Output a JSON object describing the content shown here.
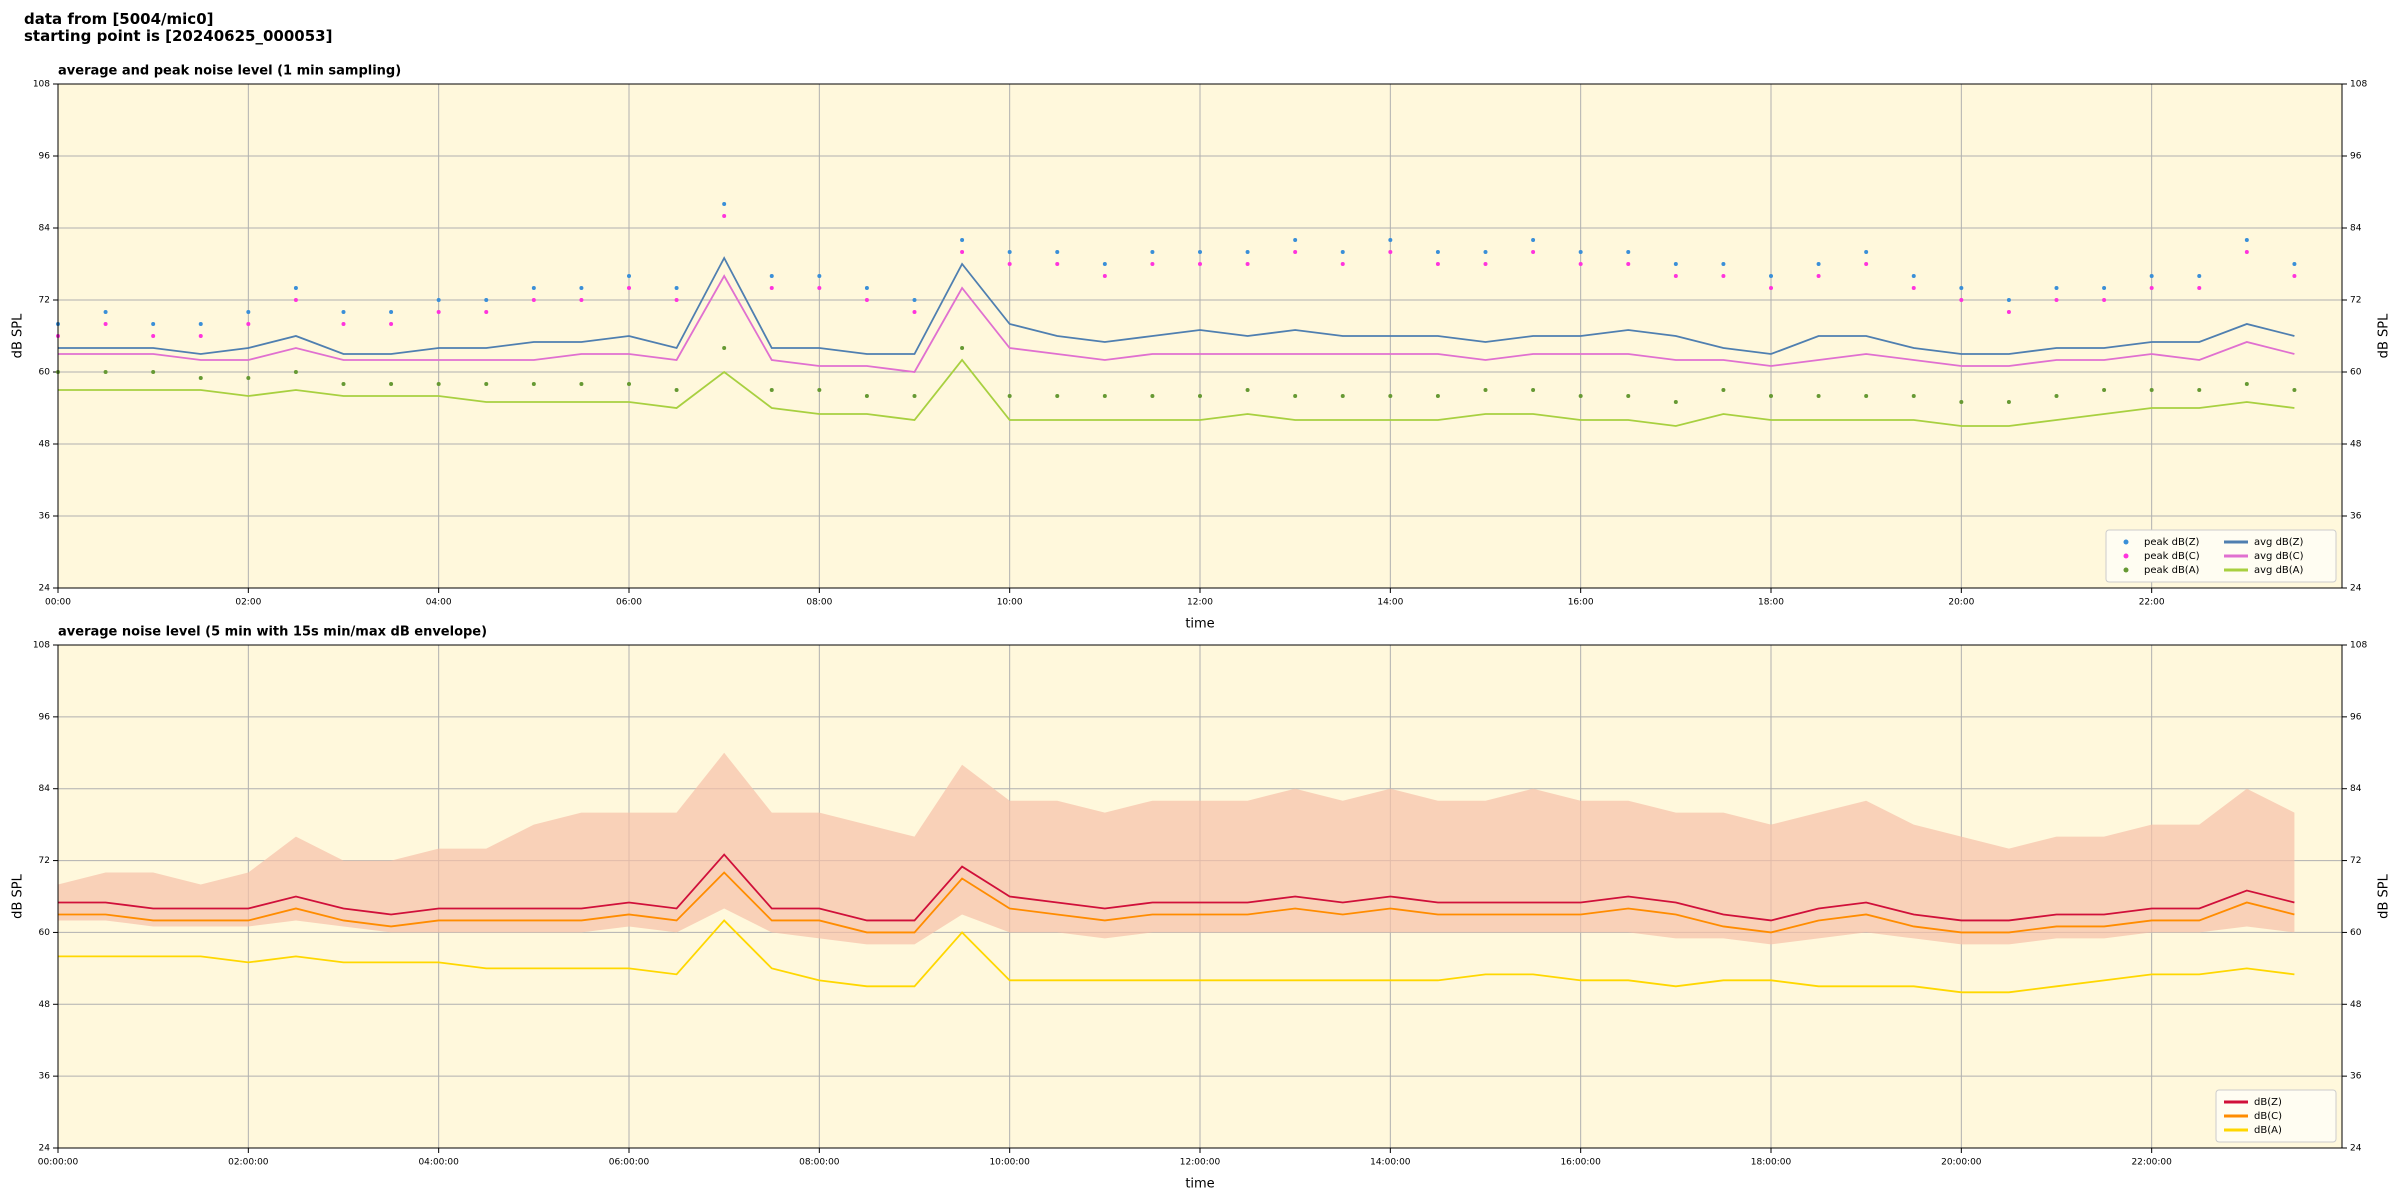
{
  "header": {
    "line1": "data from [5004/mic0]",
    "line2": "starting point is [20240625_000053]"
  },
  "chart_data": [
    {
      "type": "line",
      "title": "average and peak noise level (1 min sampling)",
      "xlabel": "time",
      "ylabel": "dB SPL",
      "x": [
        0,
        30,
        60,
        90,
        120,
        150,
        180,
        210,
        240,
        270,
        300,
        330,
        360,
        390,
        420,
        450,
        480,
        510,
        540,
        570,
        600,
        630,
        660,
        690,
        720,
        750,
        780,
        810,
        840,
        870,
        900,
        930,
        960,
        990,
        1020,
        1050,
        1080,
        1110,
        1140,
        1170,
        1200,
        1230,
        1260,
        1290,
        1320,
        1350,
        1380,
        1410
      ],
      "xlim": [
        0,
        1440
      ],
      "xticks": [
        {
          "value": 0,
          "label": "00:00"
        },
        {
          "value": 120,
          "label": "02:00"
        },
        {
          "value": 240,
          "label": "04:00"
        },
        {
          "value": 360,
          "label": "06:00"
        },
        {
          "value": 480,
          "label": "08:00"
        },
        {
          "value": 600,
          "label": "10:00"
        },
        {
          "value": 720,
          "label": "12:00"
        },
        {
          "value": 840,
          "label": "14:00"
        },
        {
          "value": 960,
          "label": "16:00"
        },
        {
          "value": 1080,
          "label": "18:00"
        },
        {
          "value": 1200,
          "label": "20:00"
        },
        {
          "value": 1320,
          "label": "22:00"
        }
      ],
      "ylim": [
        24,
        108
      ],
      "yticks": [
        24,
        36,
        48,
        60,
        72,
        84,
        96,
        108
      ],
      "grid": true,
      "legend": "lower right",
      "background": "#fff8dc",
      "series": [
        {
          "name": "peak dB(Z)",
          "style": "scatter",
          "color": "#3a8fd8",
          "values": [
            68,
            70,
            68,
            68,
            70,
            74,
            70,
            70,
            72,
            72,
            74,
            74,
            76,
            74,
            88,
            76,
            76,
            74,
            72,
            82,
            80,
            80,
            78,
            80,
            80,
            80,
            82,
            80,
            82,
            80,
            80,
            82,
            80,
            80,
            78,
            78,
            76,
            78,
            80,
            76,
            74,
            72,
            74,
            74,
            76,
            76,
            82,
            78
          ]
        },
        {
          "name": "peak dB(C)",
          "style": "scatter",
          "color": "#ff33dd",
          "values": [
            66,
            68,
            66,
            66,
            68,
            72,
            68,
            68,
            70,
            70,
            72,
            72,
            74,
            72,
            86,
            74,
            74,
            72,
            70,
            80,
            78,
            78,
            76,
            78,
            78,
            78,
            80,
            78,
            80,
            78,
            78,
            80,
            78,
            78,
            76,
            76,
            74,
            76,
            78,
            74,
            72,
            70,
            72,
            72,
            74,
            74,
            80,
            76
          ]
        },
        {
          "name": "peak dB(A)",
          "style": "scatter",
          "color": "#669933",
          "values": [
            60,
            60,
            60,
            59,
            59,
            60,
            58,
            58,
            58,
            58,
            58,
            58,
            58,
            57,
            64,
            57,
            57,
            56,
            56,
            64,
            56,
            56,
            56,
            56,
            56,
            57,
            56,
            56,
            56,
            56,
            57,
            57,
            56,
            56,
            55,
            57,
            56,
            56,
            56,
            56,
            55,
            55,
            56,
            57,
            57,
            57,
            58,
            57
          ]
        },
        {
          "name": "avg dB(Z)",
          "style": "line",
          "color": "#4f7fb0",
          "values": [
            64,
            64,
            64,
            63,
            64,
            66,
            63,
            63,
            64,
            64,
            65,
            65,
            66,
            64,
            79,
            64,
            64,
            63,
            63,
            78,
            68,
            66,
            65,
            66,
            67,
            66,
            67,
            66,
            66,
            66,
            65,
            66,
            66,
            67,
            66,
            64,
            63,
            66,
            66,
            64,
            63,
            63,
            64,
            64,
            65,
            65,
            68,
            66
          ]
        },
        {
          "name": "avg dB(C)",
          "style": "line",
          "color": "#e070d0",
          "values": [
            63,
            63,
            63,
            62,
            62,
            64,
            62,
            62,
            62,
            62,
            62,
            63,
            63,
            62,
            76,
            62,
            61,
            61,
            60,
            74,
            64,
            63,
            62,
            63,
            63,
            63,
            63,
            63,
            63,
            63,
            62,
            63,
            63,
            63,
            62,
            62,
            61,
            62,
            63,
            62,
            61,
            61,
            62,
            62,
            63,
            62,
            65,
            63
          ]
        },
        {
          "name": "avg dB(A)",
          "style": "line",
          "color": "#a8d040",
          "values": [
            57,
            57,
            57,
            57,
            56,
            57,
            56,
            56,
            56,
            55,
            55,
            55,
            55,
            54,
            60,
            54,
            53,
            53,
            52,
            62,
            52,
            52,
            52,
            52,
            52,
            53,
            52,
            52,
            52,
            52,
            53,
            53,
            52,
            52,
            51,
            53,
            52,
            52,
            52,
            52,
            51,
            51,
            52,
            53,
            54,
            54,
            55,
            54
          ]
        }
      ]
    },
    {
      "type": "line",
      "title": "average noise level (5 min with 15s min/max dB envelope)",
      "xlabel": "time",
      "ylabel": "dB SPL",
      "x": [
        0,
        30,
        60,
        90,
        120,
        150,
        180,
        210,
        240,
        270,
        300,
        330,
        360,
        390,
        420,
        450,
        480,
        510,
        540,
        570,
        600,
        630,
        660,
        690,
        720,
        750,
        780,
        810,
        840,
        870,
        900,
        930,
        960,
        990,
        1020,
        1050,
        1080,
        1110,
        1140,
        1170,
        1200,
        1230,
        1260,
        1290,
        1320,
        1350,
        1380,
        1410
      ],
      "xlim": [
        0,
        1440
      ],
      "xticks": [
        {
          "value": 0,
          "label": "00:00:00"
        },
        {
          "value": 120,
          "label": "02:00:00"
        },
        {
          "value": 240,
          "label": "04:00:00"
        },
        {
          "value": 360,
          "label": "06:00:00"
        },
        {
          "value": 480,
          "label": "08:00:00"
        },
        {
          "value": 600,
          "label": "10:00:00"
        },
        {
          "value": 720,
          "label": "12:00:00"
        },
        {
          "value": 840,
          "label": "14:00:00"
        },
        {
          "value": 960,
          "label": "16:00:00"
        },
        {
          "value": 1080,
          "label": "18:00:00"
        },
        {
          "value": 1200,
          "label": "20:00:00"
        },
        {
          "value": 1320,
          "label": "22:00:00"
        }
      ],
      "ylim": [
        24,
        108
      ],
      "yticks": [
        24,
        36,
        48,
        60,
        72,
        84,
        96,
        108
      ],
      "grid": true,
      "legend": "lower right",
      "background": "#fff8dc",
      "envelope": {
        "color": "#f7c0a8",
        "max": [
          68,
          70,
          70,
          68,
          70,
          76,
          72,
          72,
          74,
          74,
          78,
          80,
          80,
          80,
          90,
          80,
          80,
          78,
          76,
          88,
          82,
          82,
          80,
          82,
          82,
          82,
          84,
          82,
          84,
          82,
          82,
          84,
          82,
          82,
          80,
          80,
          78,
          80,
          82,
          78,
          76,
          74,
          76,
          76,
          78,
          78,
          84,
          80
        ],
        "min": [
          62,
          62,
          61,
          61,
          61,
          62,
          61,
          60,
          60,
          60,
          60,
          60,
          61,
          60,
          64,
          60,
          59,
          58,
          58,
          63,
          60,
          60,
          59,
          60,
          60,
          60,
          60,
          60,
          60,
          60,
          60,
          60,
          60,
          60,
          59,
          59,
          58,
          59,
          60,
          59,
          58,
          58,
          59,
          59,
          60,
          60,
          61,
          60
        ]
      },
      "series": [
        {
          "name": "dB(Z)",
          "style": "line",
          "color": "#d0103a",
          "values": [
            65,
            65,
            64,
            64,
            64,
            66,
            64,
            63,
            64,
            64,
            64,
            64,
            65,
            64,
            73,
            64,
            64,
            62,
            62,
            71,
            66,
            65,
            64,
            65,
            65,
            65,
            66,
            65,
            66,
            65,
            65,
            65,
            65,
            66,
            65,
            63,
            62,
            64,
            65,
            63,
            62,
            62,
            63,
            63,
            64,
            64,
            67,
            65
          ]
        },
        {
          "name": "dB(C)",
          "style": "line",
          "color": "#ff8c00",
          "values": [
            63,
            63,
            62,
            62,
            62,
            64,
            62,
            61,
            62,
            62,
            62,
            62,
            63,
            62,
            70,
            62,
            62,
            60,
            60,
            69,
            64,
            63,
            62,
            63,
            63,
            63,
            64,
            63,
            64,
            63,
            63,
            63,
            63,
            64,
            63,
            61,
            60,
            62,
            63,
            61,
            60,
            60,
            61,
            61,
            62,
            62,
            65,
            63
          ]
        },
        {
          "name": "dB(A)",
          "style": "line",
          "color": "#ffd700",
          "values": [
            56,
            56,
            56,
            56,
            55,
            56,
            55,
            55,
            55,
            54,
            54,
            54,
            54,
            53,
            62,
            54,
            52,
            51,
            51,
            60,
            52,
            52,
            52,
            52,
            52,
            52,
            52,
            52,
            52,
            52,
            53,
            53,
            52,
            52,
            51,
            52,
            52,
            51,
            51,
            51,
            50,
            50,
            51,
            52,
            53,
            53,
            54,
            53
          ]
        }
      ]
    }
  ]
}
